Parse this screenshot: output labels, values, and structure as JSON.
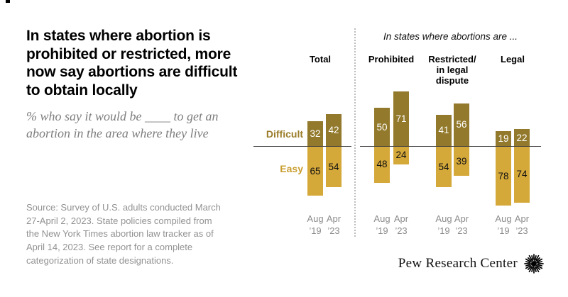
{
  "header": {
    "title_lines": [
      "In states where abortion is",
      "prohibited or restricted, more",
      "now say abortions are difficult",
      "to obtain locally"
    ],
    "subtitle_lines": [
      "% who say it would be ____ to get an",
      "abortion in the area where they live"
    ]
  },
  "chart_data": {
    "type": "bar",
    "variant": "diverging",
    "section_header": "In states where abortions are ...",
    "legend": {
      "positive": "Difficult",
      "negative": "Easy"
    },
    "x_axis": {
      "periods": [
        "Aug ’19",
        "Apr ’23"
      ]
    },
    "groups": [
      {
        "label_lines": [
          "Total"
        ],
        "bars": [
          {
            "tick_lines": [
              "Aug",
              "’19"
            ],
            "difficult": 32,
            "easy": 65
          },
          {
            "tick_lines": [
              "Apr",
              "’23"
            ],
            "difficult": 42,
            "easy": 54
          }
        ]
      },
      {
        "label_lines": [
          "Prohibited"
        ],
        "bars": [
          {
            "tick_lines": [
              "Aug",
              "’19"
            ],
            "difficult": 50,
            "easy": 48
          },
          {
            "tick_lines": [
              "Apr",
              "’23"
            ],
            "difficult": 71,
            "easy": 24
          }
        ]
      },
      {
        "label_lines": [
          "Restricted/",
          "in legal",
          "dispute"
        ],
        "bars": [
          {
            "tick_lines": [
              "Aug",
              "’19"
            ],
            "difficult": 41,
            "easy": 54
          },
          {
            "tick_lines": [
              "Apr",
              "’23"
            ],
            "difficult": 56,
            "easy": 39
          }
        ]
      },
      {
        "label_lines": [
          "Legal"
        ],
        "bars": [
          {
            "tick_lines": [
              "Aug",
              "’19"
            ],
            "difficult": 19,
            "easy": 78
          },
          {
            "tick_lines": [
              "Apr",
              "’23"
            ],
            "difficult": 22,
            "easy": 74
          }
        ]
      }
    ],
    "colors": {
      "difficult_bar": "#92792B",
      "easy_bar": "#D5A83A",
      "difficult_label": "#9A7C28",
      "easy_label": "#C99D2F",
      "difficult_value_text": "#FFFFFF",
      "easy_value_text": "#111111"
    }
  },
  "source_lines": [
    "Source: Survey of U.S. adults conducted March",
    "27-April 2, 2023. State policies compiled from",
    "the New York Times abortion law tracker as of",
    "April 14, 2023. See report for a complete",
    "categorization of state designations."
  ],
  "footer": {
    "brand": "Pew Research Center"
  }
}
